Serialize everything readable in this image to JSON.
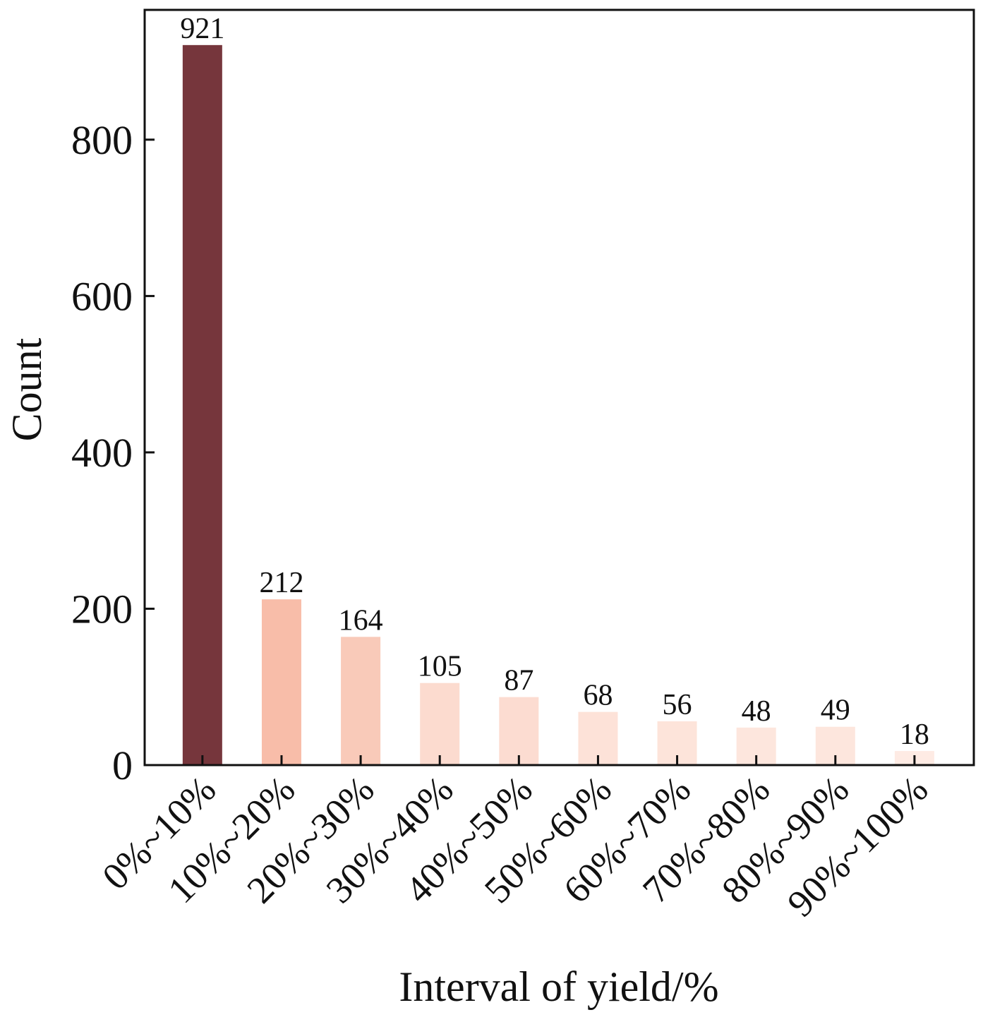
{
  "chart_data": {
    "type": "bar",
    "title": "",
    "xlabel": "Interval of yield/%",
    "ylabel": "Count",
    "categories": [
      "0%~10%",
      "10%~20%",
      "20%~30%",
      "30%~40%",
      "40%~50%",
      "50%~60%",
      "60%~70%",
      "70%~80%",
      "80%~90%",
      "90%~100%"
    ],
    "values": [
      921,
      212,
      164,
      105,
      87,
      68,
      56,
      48,
      49,
      18
    ],
    "data_labels": [
      "921",
      "212",
      "164",
      "105",
      "87",
      "68",
      "56",
      "48",
      "49",
      "18"
    ],
    "colors": [
      "#76363c",
      "#f8bda9",
      "#f9cab9",
      "#fcdbcf",
      "#fcdcd1",
      "#fde2d8",
      "#fde4da",
      "#fde6dd",
      "#fde6dd",
      "#feebe4"
    ],
    "yticks": [
      0,
      200,
      400,
      600,
      800
    ],
    "ytick_labels": [
      "0",
      "200",
      "400",
      "600",
      "800"
    ],
    "ylim": [
      0,
      966
    ],
    "grid": false,
    "legend": "none"
  }
}
